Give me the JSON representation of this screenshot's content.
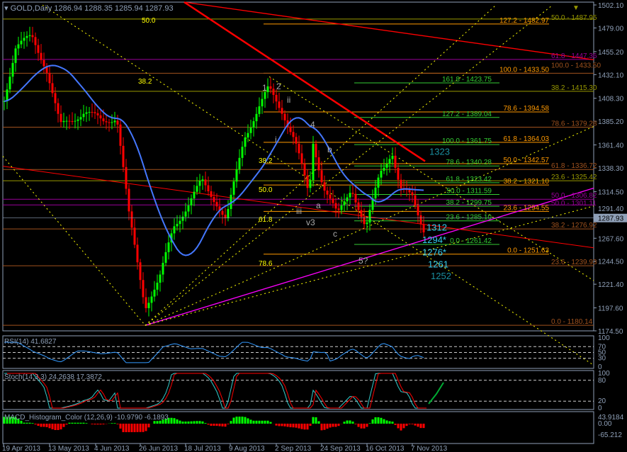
{
  "header": {
    "symbol": "GOLD,Daily",
    "ohlc": "1286.94 1288.35 1285.94 1287.93"
  },
  "colors": {
    "bull": "#00ff00",
    "bear": "#ff0000",
    "axis": "#8fa0b8",
    "bg": "#000000",
    "current_price_bg": "#8fa0b8"
  },
  "chart_data": [
    {
      "type": "candlestick",
      "panel": "main",
      "title": "GOLD,Daily",
      "ylim": [
        1174.5,
        1502.1
      ],
      "yticks": [
        "1502.10",
        "1479.00",
        "1455.20",
        "1432.10",
        "1408.30",
        "1385.20",
        "1361.40",
        "1338.30",
        "1314.50",
        "1291.40",
        "1267.60",
        "1244.50",
        "1221.40",
        "1197.60",
        "1174.50"
      ],
      "current_price": "1287.93",
      "xticks": [
        "19 Apr 2013",
        "13 May 2013",
        "4 Jun 2013",
        "26 Jun 2013",
        "18 Jul 2013",
        "9 Aug 2013",
        "2 Sep 2013",
        "24 Sep 2013",
        "16 Oct 2013",
        "7 Nov 2013"
      ],
      "close_path": [
        {
          "date": "19 Apr 2013",
          "close": 1405
        },
        {
          "date": "25 Apr 2013",
          "close": 1460
        },
        {
          "date": "3 May 2013",
          "close": 1470
        },
        {
          "date": "10 May 2013",
          "close": 1440
        },
        {
          "date": "17 May 2013",
          "close": 1380
        },
        {
          "date": "29 May 2013",
          "close": 1395
        },
        {
          "date": "7 Jun 2013",
          "close": 1385
        },
        {
          "date": "14 Jun 2013",
          "close": 1390
        },
        {
          "date": "20 Jun 2013",
          "close": 1290
        },
        {
          "date": "28 Jun 2013",
          "close": 1200
        },
        {
          "date": "5 Jul 2013",
          "close": 1225
        },
        {
          "date": "12 Jul 2013",
          "close": 1280
        },
        {
          "date": "19 Jul 2013",
          "close": 1300
        },
        {
          "date": "26 Jul 2013",
          "close": 1325
        },
        {
          "date": "2 Aug 2013",
          "close": 1305
        },
        {
          "date": "7 Aug 2013",
          "close": 1285
        },
        {
          "date": "16 Aug 2013",
          "close": 1370
        },
        {
          "date": "28 Aug 2013",
          "close": 1418
        },
        {
          "date": "4 Sep 2013",
          "close": 1395
        },
        {
          "date": "10 Sep 2013",
          "close": 1365
        },
        {
          "date": "17 Sep 2013",
          "close": 1310
        },
        {
          "date": "19 Sep 2013",
          "close": 1365
        },
        {
          "date": "24 Sep 2013",
          "close": 1320
        },
        {
          "date": "1 Oct 2013",
          "close": 1290
        },
        {
          "date": "8 Oct 2013",
          "close": 1320
        },
        {
          "date": "15 Oct 2013",
          "close": 1275
        },
        {
          "date": "22 Oct 2013",
          "close": 1335
        },
        {
          "date": "28 Oct 2013",
          "close": 1355
        },
        {
          "date": "1 Nov 2013",
          "close": 1315
        },
        {
          "date": "7 Nov 2013",
          "close": 1310
        },
        {
          "date": "13 Nov 2013",
          "close": 1275
        },
        {
          "date": "15 Nov 2013",
          "close": 1287.93
        }
      ],
      "fib_levels": {
        "green": [
          [
            "161.8",
            "1423.75"
          ],
          [
            "127.2",
            "1389.04"
          ],
          [
            "100.0",
            "1361.75"
          ],
          [
            "78.6",
            "1340.28"
          ],
          [
            "61.8",
            "1323.42"
          ],
          [
            "50.0",
            "1311.59"
          ],
          [
            "38.2",
            "1299.75"
          ],
          [
            "23.6",
            "1285.10"
          ],
          [
            "0.0",
            "1261.42"
          ]
        ],
        "orange": [
          [
            "127.2",
            "1482.97"
          ],
          [
            "100.0",
            "1433.50"
          ],
          [
            "78.6",
            "1394.58"
          ],
          [
            "61.8",
            "1364.03"
          ],
          [
            "50.0",
            "1342.57"
          ],
          [
            "38.2",
            "1321.10"
          ],
          [
            "23.6",
            "1294.55"
          ],
          [
            "0.0",
            "1251.63"
          ]
        ],
        "brown": [
          [
            "100.0",
            "1433.50"
          ],
          [
            "78.6",
            "1379.28"
          ],
          [
            "61.8",
            "1336.72"
          ],
          [
            "38.2",
            "1276.92"
          ],
          [
            "23.6",
            "1239.93"
          ],
          [
            "0.0",
            "1180.14"
          ]
        ],
        "olive": [
          [
            "50.0",
            "1487.95"
          ],
          [
            "38.2",
            "1415.30"
          ],
          [
            "23.6",
            "1325.42"
          ]
        ],
        "purple": [
          [
            "61.8",
            "1447.36"
          ],
          [
            "50.0",
            "1306.82"
          ],
          [
            "50.0",
            "1301.11"
          ]
        ]
      },
      "fan_labels": [
        "50.0",
        "38.2",
        "38.2",
        "50.0",
        "61.8",
        "78.6"
      ],
      "targets": [
        "1323",
        "1312",
        "1294*",
        "1276*",
        "1261",
        "1252"
      ],
      "wave_labels": [
        "1",
        "2",
        "ii",
        "i",
        "4",
        "b",
        "a",
        "iii",
        "v3",
        "c",
        "5?"
      ]
    },
    {
      "type": "line",
      "panel": "rsi",
      "title": "RSI(14) 41.6827",
      "yticks": [
        "100",
        "70",
        "50",
        "30",
        "0"
      ],
      "ylim": [
        0,
        100
      ],
      "levels": [
        70,
        50,
        30
      ]
    },
    {
      "type": "line",
      "panel": "stoch",
      "title": "Stoch(14,3,3) 24.2638 17.3872",
      "yticks": [
        "100",
        "80",
        "20",
        "0"
      ],
      "ylim": [
        0,
        100
      ],
      "levels": [
        80,
        20
      ]
    },
    {
      "type": "bar",
      "panel": "macd",
      "title": "MACD_Histogram_Color (12,26,9)  -10.9790 -6.1893",
      "yticks": [
        "43.9184",
        "0.00",
        "-65.212"
      ]
    }
  ]
}
